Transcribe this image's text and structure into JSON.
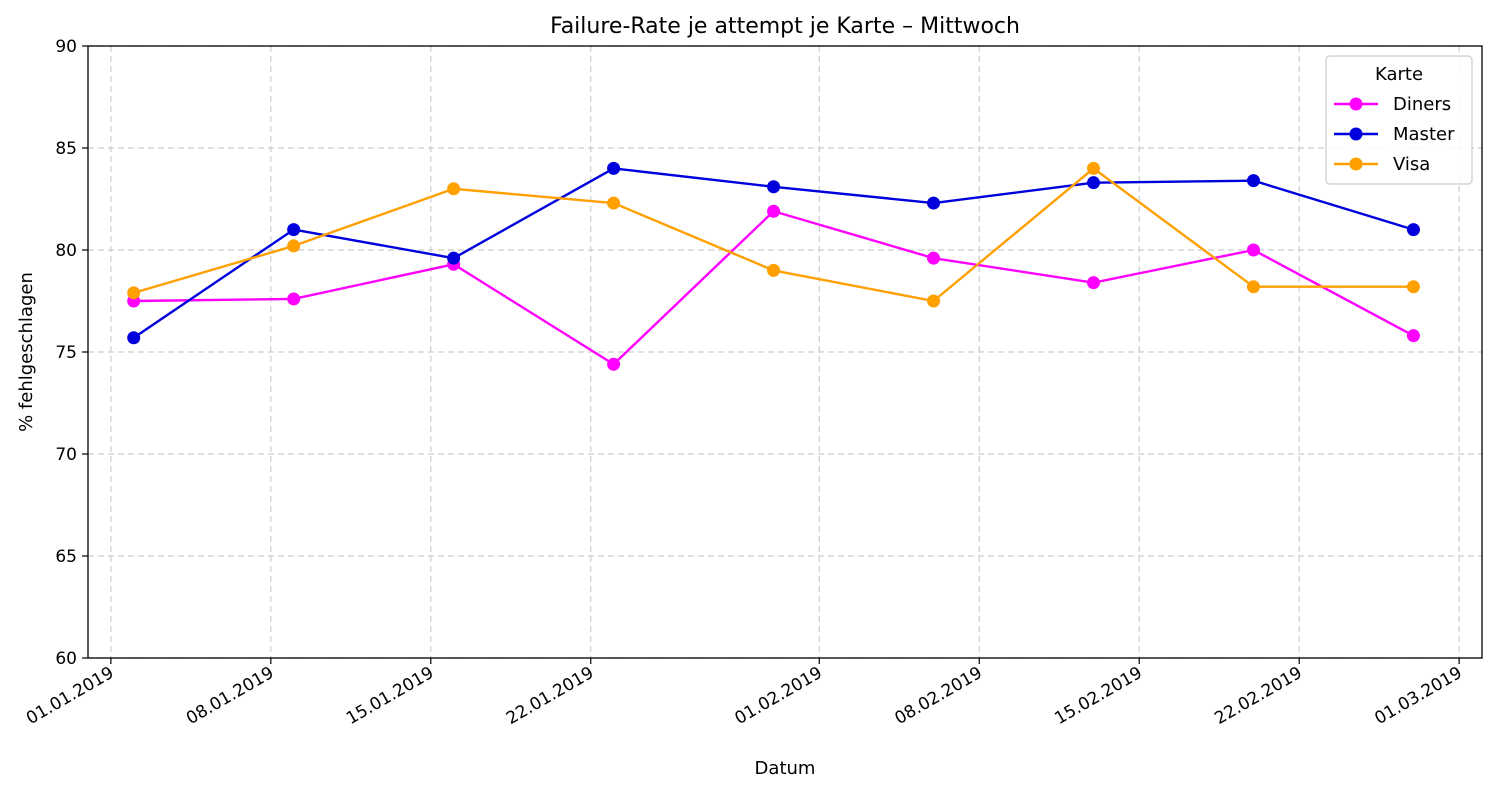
{
  "chart_data": {
    "type": "line",
    "title": "Failure-Rate je attempt je Karte – Mittwoch",
    "xlabel": "Datum",
    "ylabel": "% fehlgeschlagen",
    "ylim": [
      60,
      90
    ],
    "yticks": [
      60,
      65,
      70,
      75,
      80,
      85,
      90
    ],
    "xlim": [
      "2018-12-31",
      "2019-03-02"
    ],
    "xticks": [
      "2019-01-01",
      "2019-01-08",
      "2019-01-15",
      "2019-01-22",
      "2019-02-01",
      "2019-02-08",
      "2019-02-15",
      "2019-02-22",
      "2019-03-01"
    ],
    "xtick_labels": [
      "01.01.2019",
      "08.01.2019",
      "15.01.2019",
      "22.01.2019",
      "01.02.2019",
      "08.02.2019",
      "15.02.2019",
      "22.02.2019",
      "01.03.2019"
    ],
    "x": [
      "2019-01-02",
      "2019-01-09",
      "2019-01-16",
      "2019-01-23",
      "2019-01-30",
      "2019-02-06",
      "2019-02-13",
      "2019-02-20",
      "2019-02-27"
    ],
    "grid": true,
    "legend": {
      "title": "Karte",
      "position": "top-right"
    },
    "series": [
      {
        "name": "Diners",
        "color": "#ff00ff",
        "values": [
          77.5,
          77.6,
          79.3,
          74.4,
          81.9,
          79.6,
          78.4,
          80.0,
          75.8
        ]
      },
      {
        "name": "Master",
        "color": "#0000dd",
        "values": [
          75.7,
          81.0,
          79.6,
          84.0,
          83.1,
          82.3,
          83.3,
          83.4,
          81.0
        ]
      },
      {
        "name": "Visa",
        "color": "#ffa000",
        "values": [
          77.9,
          80.2,
          83.0,
          82.3,
          79.0,
          77.5,
          84.0,
          78.2,
          78.2
        ]
      }
    ]
  }
}
